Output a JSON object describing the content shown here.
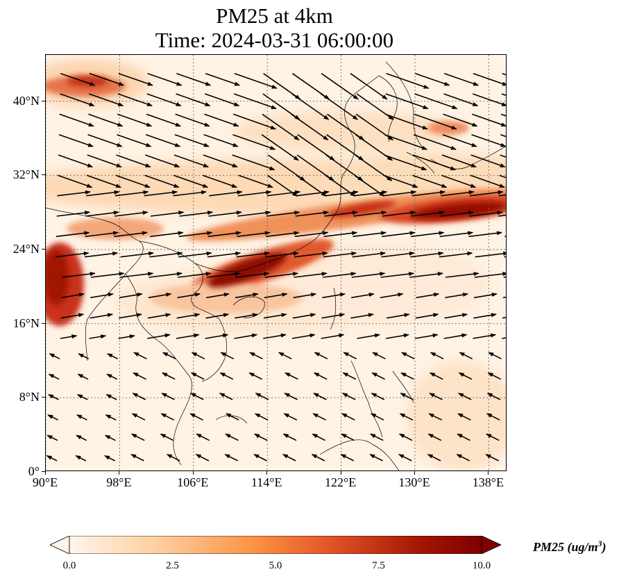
{
  "title": {
    "line1": "PM25 at 4km",
    "line2": "Time: 2024-03-31 06:00:00"
  },
  "map": {
    "extent": {
      "lon_min": 90,
      "lon_max": 140,
      "lat_min": 0,
      "lat_max": 45
    },
    "lat_ticks": [
      {
        "value": 0,
        "label": "0°"
      },
      {
        "value": 8,
        "label": "8°N"
      },
      {
        "value": 16,
        "label": "16°N"
      },
      {
        "value": 24,
        "label": "24°N"
      },
      {
        "value": 32,
        "label": "32°N"
      },
      {
        "value": 40,
        "label": "40°N"
      }
    ],
    "lon_ticks": [
      {
        "value": 90,
        "label": "90°E"
      },
      {
        "value": 98,
        "label": "98°E"
      },
      {
        "value": 106,
        "label": "106°E"
      },
      {
        "value": 114,
        "label": "114°E"
      },
      {
        "value": 122,
        "label": "122°E"
      },
      {
        "value": 130,
        "label": "130°E"
      },
      {
        "value": 138,
        "label": "138°E"
      }
    ],
    "gridlines": true
  },
  "colorbar": {
    "label_prefix": "PM25 (ug/m",
    "label_exp": "3",
    "label_suffix": ")",
    "min": 0,
    "max": 10,
    "ticks": [
      "0.0",
      "2.5",
      "5.0",
      "7.5",
      "10.0"
    ],
    "colormap_stops": [
      "#fff5eb",
      "#fdd2a5",
      "#fd9243",
      "#df4f24",
      "#a31603",
      "#7f0000"
    ]
  },
  "colors": {
    "wind_arrow": "#000000",
    "coastline": "#000000",
    "grid": "#666666"
  }
}
